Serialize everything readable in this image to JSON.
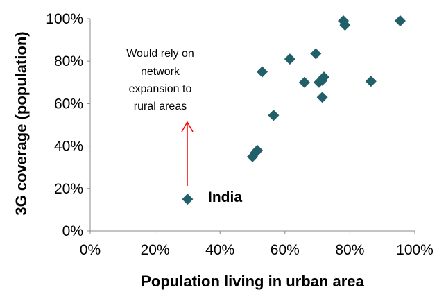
{
  "chart_data": {
    "type": "scatter",
    "xlabel": "Population living in urban area",
    "ylabel": "3G coverage (population)",
    "xlim": [
      0,
      100
    ],
    "ylim": [
      0,
      100
    ],
    "x_ticks": [
      "0%",
      "20%",
      "40%",
      "60%",
      "80%",
      "100%"
    ],
    "y_ticks": [
      "0%",
      "20%",
      "40%",
      "60%",
      "80%",
      "100%"
    ],
    "grid": false,
    "series": [
      {
        "marker": "diamond",
        "color": "#215F69",
        "points": [
          {
            "x": 30,
            "y": 15
          },
          {
            "x": 50,
            "y": 35
          },
          {
            "x": 51,
            "y": 37
          },
          {
            "x": 51.5,
            "y": 38
          },
          {
            "x": 53,
            "y": 75
          },
          {
            "x": 56.5,
            "y": 54.5
          },
          {
            "x": 61.5,
            "y": 81
          },
          {
            "x": 66,
            "y": 70
          },
          {
            "x": 69.5,
            "y": 83.5
          },
          {
            "x": 70.5,
            "y": 70
          },
          {
            "x": 71.5,
            "y": 71
          },
          {
            "x": 71.5,
            "y": 63
          },
          {
            "x": 72,
            "y": 72.5
          },
          {
            "x": 78,
            "y": 99
          },
          {
            "x": 78.5,
            "y": 97
          },
          {
            "x": 86.5,
            "y": 70.5
          },
          {
            "x": 95.5,
            "y": 99
          }
        ]
      }
    ],
    "annotations": {
      "india_label": "India",
      "note_lines": [
        "Would rely on",
        "network",
        "expansion to",
        "rural areas"
      ],
      "arrow_color": "#FF0000"
    }
  }
}
